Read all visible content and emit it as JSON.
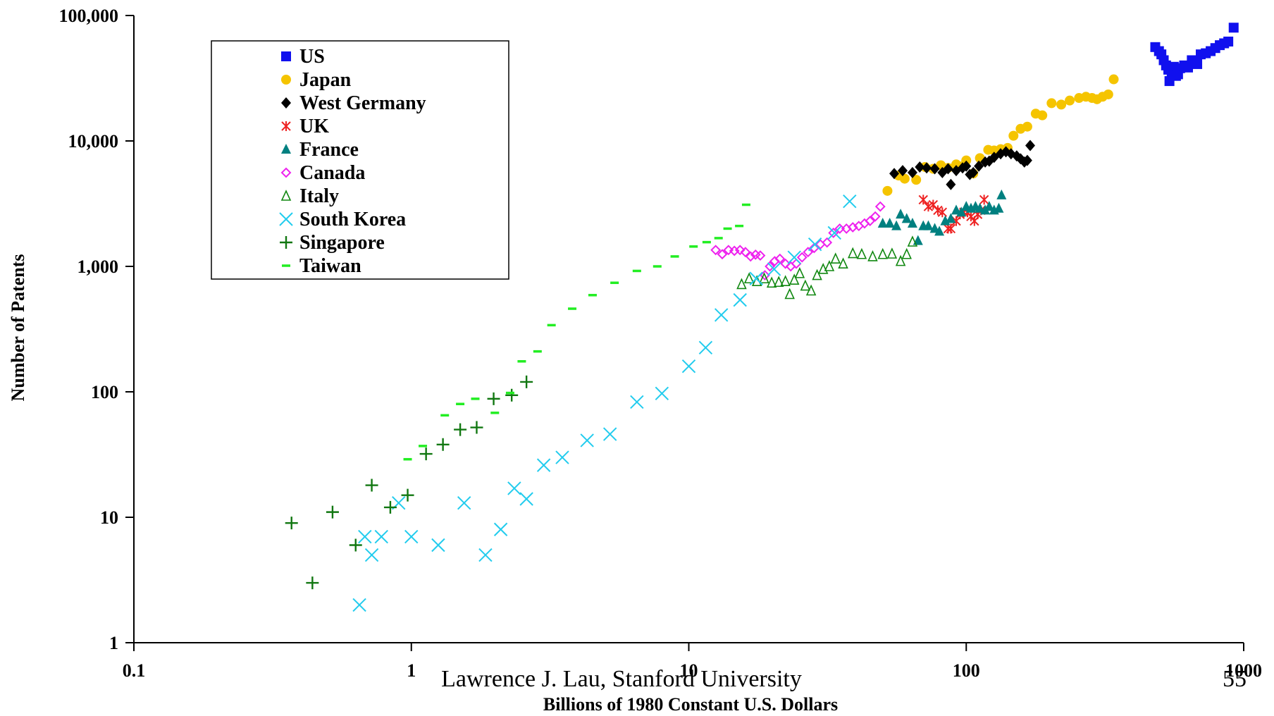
{
  "chart_data": {
    "type": "scatter",
    "xlabel": "Billions of 1980 Constant U.S. Dollars",
    "ylabel": "Number of Patents",
    "xscale": "log",
    "yscale": "log",
    "xlim": [
      0.1,
      1000
    ],
    "ylim": [
      1,
      100000
    ],
    "x_ticks": [
      {
        "value": 0.1,
        "label": "0.1"
      },
      {
        "value": 1,
        "label": "1"
      },
      {
        "value": 10,
        "label": "10"
      },
      {
        "value": 100,
        "label": "100"
      },
      {
        "value": 1000,
        "label": "1000"
      }
    ],
    "y_ticks": [
      {
        "value": 1,
        "label": "1"
      },
      {
        "value": 10,
        "label": "10"
      },
      {
        "value": 100,
        "label": "100"
      },
      {
        "value": 1000,
        "label": "1,000"
      },
      {
        "value": 10000,
        "label": "10,000"
      },
      {
        "value": 100000,
        "label": "100,000"
      }
    ],
    "grid": false,
    "legend": {
      "position": "top-left"
    },
    "series": [
      {
        "name": "US",
        "marker": "square",
        "color": "#1010ee",
        "points": [
          [
            480,
            56000
          ],
          [
            495,
            52000
          ],
          [
            505,
            49000
          ],
          [
            515,
            44000
          ],
          [
            525,
            40000
          ],
          [
            535,
            37000
          ],
          [
            540,
            30000
          ],
          [
            550,
            35000
          ],
          [
            560,
            39000
          ],
          [
            570,
            33000
          ],
          [
            580,
            34000
          ],
          [
            590,
            38000
          ],
          [
            610,
            40000
          ],
          [
            630,
            38500
          ],
          [
            650,
            44000
          ],
          [
            680,
            41000
          ],
          [
            700,
            49000
          ],
          [
            730,
            50000
          ],
          [
            760,
            52000
          ],
          [
            790,
            55000
          ],
          [
            820,
            58000
          ],
          [
            850,
            60000
          ],
          [
            880,
            62000
          ],
          [
            920,
            80000
          ]
        ]
      },
      {
        "name": "Japan",
        "marker": "circle",
        "color": "#f5c400",
        "points": [
          [
            52,
            4000
          ],
          [
            57,
            5300
          ],
          [
            60,
            5000
          ],
          [
            66,
            4900
          ],
          [
            71,
            6200
          ],
          [
            76,
            6000
          ],
          [
            81,
            6400
          ],
          [
            86,
            6100
          ],
          [
            92,
            6500
          ],
          [
            97,
            6300
          ],
          [
            100,
            7000
          ],
          [
            106,
            5500
          ],
          [
            112,
            7300
          ],
          [
            120,
            8500
          ],
          [
            126,
            8400
          ],
          [
            133,
            8600
          ],
          [
            141,
            8800
          ],
          [
            148,
            11000
          ],
          [
            157,
            12500
          ],
          [
            166,
            13000
          ],
          [
            178,
            16500
          ],
          [
            188,
            16000
          ],
          [
            203,
            20000
          ],
          [
            220,
            19500
          ],
          [
            236,
            21000
          ],
          [
            255,
            22000
          ],
          [
            270,
            22500
          ],
          [
            284,
            22000
          ],
          [
            296,
            21500
          ],
          [
            310,
            22500
          ],
          [
            325,
            23500
          ],
          [
            340,
            31000
          ]
        ]
      },
      {
        "name": "West Germany",
        "marker": "diamond",
        "color": "#000000",
        "points": [
          [
            55,
            5500
          ],
          [
            59,
            5800
          ],
          [
            64,
            5600
          ],
          [
            68,
            6200
          ],
          [
            72,
            6100
          ],
          [
            77,
            6000
          ],
          [
            82,
            5600
          ],
          [
            86,
            6000
          ],
          [
            88,
            4500
          ],
          [
            92,
            5800
          ],
          [
            97,
            6100
          ],
          [
            100,
            6300
          ],
          [
            103,
            5400
          ],
          [
            106,
            5600
          ],
          [
            111,
            6300
          ],
          [
            117,
            6800
          ],
          [
            121,
            6900
          ],
          [
            126,
            7400
          ],
          [
            133,
            7900
          ],
          [
            139,
            8200
          ],
          [
            145,
            7900
          ],
          [
            152,
            7600
          ],
          [
            157,
            7200
          ],
          [
            162,
            6800
          ],
          [
            166,
            7000
          ],
          [
            170,
            9200
          ]
        ]
      },
      {
        "name": "UK",
        "marker": "asterisk",
        "color": "#ee2222",
        "points": [
          [
            70,
            3400
          ],
          [
            73,
            3000
          ],
          [
            76,
            3100
          ],
          [
            79,
            2800
          ],
          [
            82,
            2700
          ],
          [
            86,
            2000
          ],
          [
            88,
            2000
          ],
          [
            92,
            2300
          ],
          [
            95,
            2600
          ],
          [
            98,
            2700
          ],
          [
            101,
            2700
          ],
          [
            104,
            2500
          ],
          [
            107,
            2300
          ],
          [
            110,
            2600
          ],
          [
            113,
            2800
          ],
          [
            116,
            3400
          ]
        ]
      },
      {
        "name": "France",
        "marker": "triangle",
        "color": "#008080",
        "points": [
          [
            50,
            2200
          ],
          [
            53,
            2200
          ],
          [
            56,
            2100
          ],
          [
            58,
            2600
          ],
          [
            61,
            2400
          ],
          [
            64,
            2200
          ],
          [
            67,
            1600
          ],
          [
            70,
            2100
          ],
          [
            73,
            2100
          ],
          [
            77,
            2000
          ],
          [
            80,
            1900
          ],
          [
            84,
            2300
          ],
          [
            88,
            2400
          ],
          [
            92,
            2800
          ],
          [
            96,
            2700
          ],
          [
            100,
            3000
          ],
          [
            104,
            2900
          ],
          [
            108,
            3000
          ],
          [
            112,
            2900
          ],
          [
            117,
            2800
          ],
          [
            121,
            3000
          ],
          [
            126,
            2800
          ],
          [
            131,
            2900
          ],
          [
            134,
            3700
          ]
        ]
      },
      {
        "name": "Canada",
        "marker": "diamond-open",
        "color": "#ee22ee",
        "points": [
          [
            12.5,
            1350
          ],
          [
            13.2,
            1250
          ],
          [
            13.9,
            1350
          ],
          [
            14.6,
            1330
          ],
          [
            15.3,
            1350
          ],
          [
            16,
            1300
          ],
          [
            16.7,
            1200
          ],
          [
            17.4,
            1240
          ],
          [
            18.1,
            1220
          ],
          [
            18.8,
            850
          ],
          [
            19.6,
            1000
          ],
          [
            20.4,
            1100
          ],
          [
            21.3,
            1150
          ],
          [
            22.3,
            1050
          ],
          [
            23.3,
            1000
          ],
          [
            24.4,
            1050
          ],
          [
            25.6,
            1180
          ],
          [
            26.9,
            1300
          ],
          [
            28.3,
            1400
          ],
          [
            29.8,
            1500
          ],
          [
            31.5,
            1550
          ],
          [
            33.2,
            1850
          ],
          [
            35,
            2000
          ],
          [
            37,
            2000
          ],
          [
            39,
            2050
          ],
          [
            41,
            2100
          ],
          [
            43,
            2200
          ],
          [
            45,
            2300
          ],
          [
            47,
            2500
          ],
          [
            49,
            3000
          ]
        ]
      },
      {
        "name": "Italy",
        "marker": "triangle-open",
        "color": "#118811",
        "points": [
          [
            15.5,
            720
          ],
          [
            16.5,
            800
          ],
          [
            17.6,
            760
          ],
          [
            18.7,
            800
          ],
          [
            19.9,
            740
          ],
          [
            21.1,
            750
          ],
          [
            22.3,
            760
          ],
          [
            23.1,
            600
          ],
          [
            24,
            780
          ],
          [
            25.1,
            880
          ],
          [
            26.3,
            700
          ],
          [
            27.6,
            640
          ],
          [
            29,
            850
          ],
          [
            30.5,
            950
          ],
          [
            32.1,
            1000
          ],
          [
            33.8,
            1150
          ],
          [
            36,
            1050
          ],
          [
            39,
            1270
          ],
          [
            42,
            1250
          ],
          [
            46,
            1200
          ],
          [
            50,
            1250
          ],
          [
            54,
            1260
          ],
          [
            58,
            1100
          ],
          [
            61,
            1250
          ],
          [
            64,
            1570
          ]
        ]
      },
      {
        "name": "South Korea",
        "marker": "x",
        "color": "#22ccee",
        "points": [
          [
            0.65,
            2
          ],
          [
            0.68,
            7
          ],
          [
            0.72,
            5
          ],
          [
            0.78,
            7
          ],
          [
            0.9,
            13
          ],
          [
            1.0,
            7
          ],
          [
            1.25,
            6
          ],
          [
            1.55,
            13
          ],
          [
            1.85,
            5
          ],
          [
            2.1,
            8
          ],
          [
            2.35,
            17
          ],
          [
            2.6,
            14
          ],
          [
            3.0,
            26
          ],
          [
            3.5,
            30
          ],
          [
            4.3,
            41
          ],
          [
            5.2,
            46
          ],
          [
            6.5,
            83
          ],
          [
            8.0,
            97
          ],
          [
            10,
            160
          ],
          [
            11.5,
            225
          ],
          [
            13.1,
            410
          ],
          [
            15.3,
            540
          ],
          [
            17.5,
            800
          ],
          [
            20.3,
            950
          ],
          [
            24,
            1180
          ],
          [
            28.5,
            1500
          ],
          [
            33.5,
            1850
          ],
          [
            38,
            3300
          ]
        ]
      },
      {
        "name": "Singapore",
        "marker": "plus",
        "color": "#117711",
        "points": [
          [
            0.37,
            9
          ],
          [
            0.44,
            3
          ],
          [
            0.52,
            11
          ],
          [
            0.63,
            6
          ],
          [
            0.72,
            18
          ],
          [
            0.84,
            12
          ],
          [
            0.97,
            15
          ],
          [
            1.13,
            32
          ],
          [
            1.3,
            38
          ],
          [
            1.5,
            50
          ],
          [
            1.72,
            52
          ],
          [
            1.98,
            88
          ],
          [
            2.3,
            94
          ],
          [
            2.6,
            120
          ]
        ]
      },
      {
        "name": "Taiwan",
        "marker": "dash",
        "color": "#22ee22",
        "points": [
          [
            0.97,
            29
          ],
          [
            1.1,
            37
          ],
          [
            1.32,
            65
          ],
          [
            1.5,
            80
          ],
          [
            1.7,
            88
          ],
          [
            2.0,
            68
          ],
          [
            2.27,
            98
          ],
          [
            2.5,
            175
          ],
          [
            2.85,
            210
          ],
          [
            3.2,
            340
          ],
          [
            3.8,
            460
          ],
          [
            4.5,
            590
          ],
          [
            5.4,
            740
          ],
          [
            6.5,
            920
          ],
          [
            7.7,
            1000
          ],
          [
            8.9,
            1200
          ],
          [
            10.4,
            1440
          ],
          [
            11.6,
            1560
          ],
          [
            12.8,
            1680
          ],
          [
            13.8,
            2000
          ],
          [
            15.2,
            2100
          ],
          [
            16.1,
            3100
          ]
        ]
      }
    ]
  },
  "footer": {
    "author": "Lawrence J. Lau, Stanford University",
    "page_number": "55"
  }
}
